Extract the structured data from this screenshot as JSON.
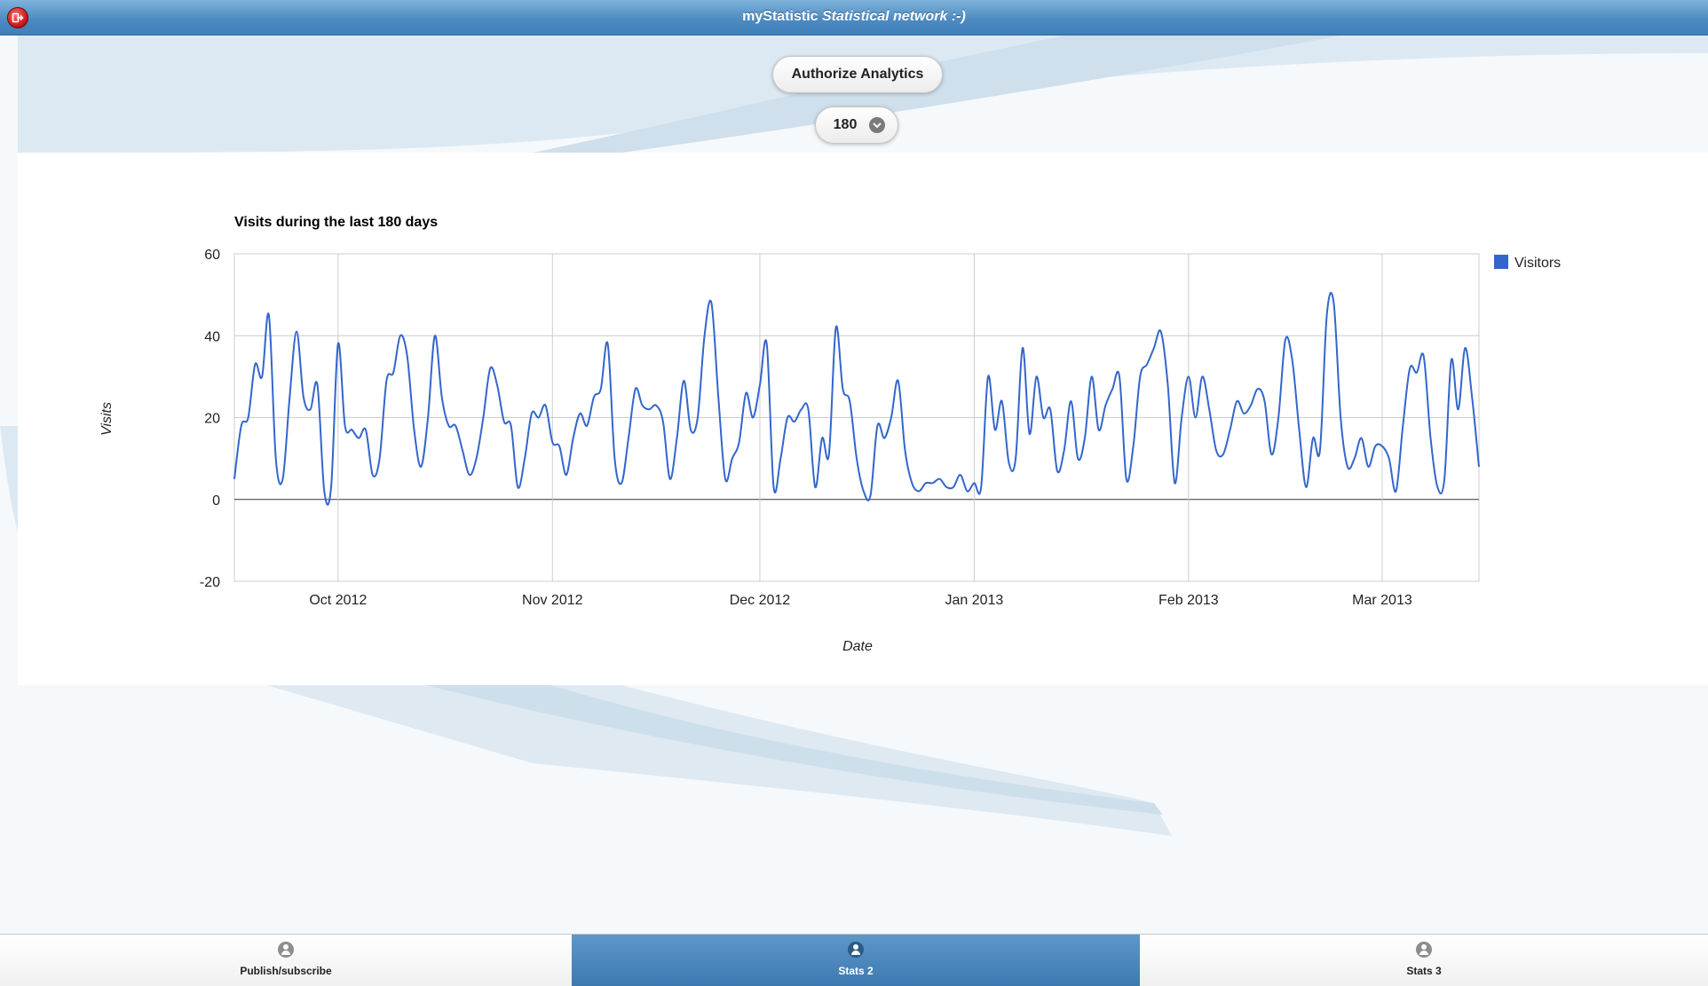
{
  "header": {
    "title_plain": "myStatistic",
    "title_italic": "Statistical network :-)"
  },
  "controls": {
    "authorize_label": "Authorize Analytics",
    "days_value": "180"
  },
  "footer": {
    "tabs": [
      {
        "label": "Publish/subscribe",
        "active": false
      },
      {
        "label": "Stats 2",
        "active": true
      },
      {
        "label": "Stats 3",
        "active": false
      }
    ]
  },
  "colors": {
    "header": "#4e8cc2",
    "series": "#3366cc",
    "active_tab": "#3d79b0"
  },
  "chart_data": {
    "type": "line",
    "title": "Visits during the last 180 days",
    "xlabel": "Date",
    "ylabel": "Visits",
    "ylim": [
      -20,
      60
    ],
    "yticks": [
      60,
      40,
      20,
      0,
      -20
    ],
    "x_range": [
      "2012-09-16",
      "2013-03-15"
    ],
    "xticks": [
      {
        "date": "2012-10-01",
        "label": "Oct 2012"
      },
      {
        "date": "2012-11-01",
        "label": "Nov 2012"
      },
      {
        "date": "2012-12-01",
        "label": "Dec 2012"
      },
      {
        "date": "2013-01-01",
        "label": "Jan 2013"
      },
      {
        "date": "2013-02-01",
        "label": "Feb 2013"
      },
      {
        "date": "2013-03-01",
        "label": "Mar 2013"
      }
    ],
    "grid": true,
    "legend_position": "right",
    "series": [
      {
        "name": "Visitors",
        "color": "#3366cc",
        "x": [
          "2012-09-16",
          "2012-09-17",
          "2012-09-18",
          "2012-09-19",
          "2012-09-20",
          "2012-09-21",
          "2012-09-22",
          "2012-09-23",
          "2012-09-24",
          "2012-09-25",
          "2012-09-26",
          "2012-09-27",
          "2012-09-28",
          "2012-09-29",
          "2012-09-30",
          "2012-10-01",
          "2012-10-02",
          "2012-10-03",
          "2012-10-04",
          "2012-10-05",
          "2012-10-06",
          "2012-10-07",
          "2012-10-08",
          "2012-10-09",
          "2012-10-10",
          "2012-10-11",
          "2012-10-12",
          "2012-10-13",
          "2012-10-14",
          "2012-10-15",
          "2012-10-16",
          "2012-10-17",
          "2012-10-18",
          "2012-10-19",
          "2012-10-20",
          "2012-10-21",
          "2012-10-22",
          "2012-10-23",
          "2012-10-24",
          "2012-10-25",
          "2012-10-26",
          "2012-10-27",
          "2012-10-28",
          "2012-10-29",
          "2012-10-30",
          "2012-10-31",
          "2012-11-01",
          "2012-11-02",
          "2012-11-03",
          "2012-11-04",
          "2012-11-05",
          "2012-11-06",
          "2012-11-07",
          "2012-11-08",
          "2012-11-09",
          "2012-11-10",
          "2012-11-11",
          "2012-11-12",
          "2012-11-13",
          "2012-11-14",
          "2012-11-15",
          "2012-11-16",
          "2012-11-17",
          "2012-11-18",
          "2012-11-19",
          "2012-11-20",
          "2012-11-21",
          "2012-11-22",
          "2012-11-23",
          "2012-11-24",
          "2012-11-25",
          "2012-11-26",
          "2012-11-27",
          "2012-11-28",
          "2012-11-29",
          "2012-11-30",
          "2012-12-01",
          "2012-12-02",
          "2012-12-03",
          "2012-12-04",
          "2012-12-05",
          "2012-12-06",
          "2012-12-07",
          "2012-12-08",
          "2012-12-09",
          "2012-12-10",
          "2012-12-11",
          "2012-12-12",
          "2012-12-13",
          "2012-12-14",
          "2012-12-15",
          "2012-12-16",
          "2012-12-17",
          "2012-12-18",
          "2012-12-19",
          "2012-12-20",
          "2012-12-21",
          "2012-12-22",
          "2012-12-23",
          "2012-12-24",
          "2012-12-25",
          "2012-12-26",
          "2012-12-27",
          "2012-12-28",
          "2012-12-29",
          "2012-12-30",
          "2012-12-31",
          "2013-01-01",
          "2013-01-02",
          "2013-01-03",
          "2013-01-04",
          "2013-01-05",
          "2013-01-06",
          "2013-01-07",
          "2013-01-08",
          "2013-01-09",
          "2013-01-10",
          "2013-01-11",
          "2013-01-12",
          "2013-01-13",
          "2013-01-14",
          "2013-01-15",
          "2013-01-16",
          "2013-01-17",
          "2013-01-18",
          "2013-01-19",
          "2013-01-20",
          "2013-01-21",
          "2013-01-22",
          "2013-01-23",
          "2013-01-24",
          "2013-01-25",
          "2013-01-26",
          "2013-01-27",
          "2013-01-28",
          "2013-01-29",
          "2013-01-30",
          "2013-01-31",
          "2013-02-01",
          "2013-02-02",
          "2013-02-03",
          "2013-02-04",
          "2013-02-05",
          "2013-02-06",
          "2013-02-07",
          "2013-02-08",
          "2013-02-09",
          "2013-02-10",
          "2013-02-11",
          "2013-02-12",
          "2013-02-13",
          "2013-02-14",
          "2013-02-15",
          "2013-02-16",
          "2013-02-17",
          "2013-02-18",
          "2013-02-19",
          "2013-02-20",
          "2013-02-21",
          "2013-02-22",
          "2013-02-23",
          "2013-02-24",
          "2013-02-25",
          "2013-02-26",
          "2013-02-27",
          "2013-02-28",
          "2013-03-01",
          "2013-03-02",
          "2013-03-03",
          "2013-03-04",
          "2013-03-05",
          "2013-03-06",
          "2013-03-07",
          "2013-03-08",
          "2013-03-09",
          "2013-03-10",
          "2013-03-11",
          "2013-03-12",
          "2013-03-13",
          "2013-03-14",
          "2013-03-15"
        ],
        "values": [
          5,
          18,
          20,
          33,
          30,
          45,
          10,
          5,
          25,
          41,
          25,
          22,
          28,
          2,
          3,
          38,
          18,
          17,
          15,
          17,
          6,
          10,
          29,
          31,
          40,
          35,
          17,
          8,
          20,
          40,
          25,
          18,
          18,
          12,
          6,
          10,
          20,
          32,
          28,
          19,
          18,
          3,
          10,
          21,
          20,
          23,
          14,
          13,
          6,
          15,
          21,
          18,
          25,
          27,
          38,
          10,
          4,
          15,
          27,
          23,
          22,
          23,
          19,
          5,
          15,
          29,
          17,
          20,
          40,
          48,
          25,
          5,
          10,
          14,
          26,
          20,
          28,
          38,
          3,
          10,
          20,
          19,
          22,
          22,
          3,
          15,
          11,
          42,
          27,
          24,
          10,
          2,
          1,
          18,
          15,
          20,
          29,
          12,
          4,
          2,
          4,
          4,
          5,
          3,
          3,
          6,
          2,
          4,
          3,
          30,
          17,
          24,
          9,
          10,
          37,
          16,
          30,
          20,
          22,
          7,
          12,
          24,
          10,
          15,
          30,
          17,
          23,
          27,
          30,
          5,
          13,
          30,
          33,
          37,
          41,
          28,
          4,
          20,
          30,
          20,
          30,
          22,
          12,
          11,
          17,
          24,
          21,
          23,
          27,
          24,
          11,
          20,
          39,
          34,
          17,
          3,
          15,
          12,
          45,
          48,
          20,
          8,
          10,
          15,
          8,
          13,
          13,
          10,
          2,
          18,
          32,
          31,
          35,
          15,
          3,
          5,
          34,
          22,
          37,
          25,
          8
        ]
      }
    ]
  }
}
